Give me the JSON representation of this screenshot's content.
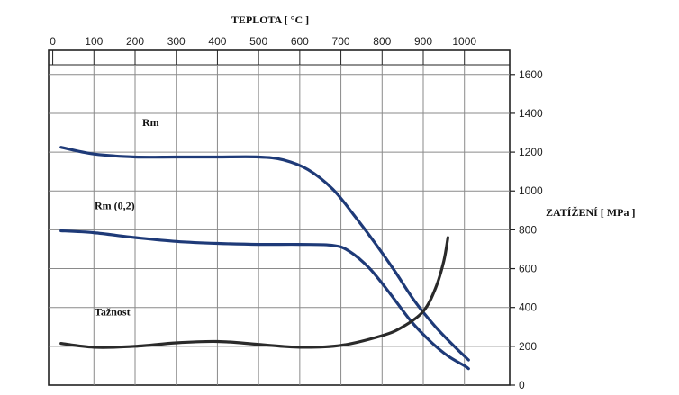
{
  "chart_data": {
    "type": "line",
    "x_axis": {
      "label": "TEPLOTA [ °C ]",
      "position": "top",
      "ticks": [
        0,
        100,
        200,
        300,
        400,
        500,
        600,
        700,
        800,
        900,
        1000
      ],
      "range": [
        -10,
        1110
      ]
    },
    "y_axis": {
      "label": "ZATÍŽENÍ  [ MPa ]",
      "position": "right",
      "ticks": [
        0,
        200,
        400,
        600,
        800,
        1000,
        1200,
        1400,
        1600
      ],
      "range": [
        0,
        1650
      ]
    },
    "grid": true,
    "series": [
      {
        "name": "Rm",
        "color": "#1e3a78",
        "points": [
          [
            20,
            1225
          ],
          [
            100,
            1190
          ],
          [
            200,
            1175
          ],
          [
            300,
            1175
          ],
          [
            400,
            1175
          ],
          [
            500,
            1175
          ],
          [
            560,
            1160
          ],
          [
            620,
            1110
          ],
          [
            680,
            1010
          ],
          [
            730,
            880
          ],
          [
            780,
            740
          ],
          [
            830,
            590
          ],
          [
            880,
            430
          ],
          [
            930,
            300
          ],
          [
            980,
            190
          ],
          [
            1010,
            130
          ]
        ]
      },
      {
        "name": "Rm (0,2)",
        "color": "#1e3a78",
        "points": [
          [
            20,
            795
          ],
          [
            100,
            785
          ],
          [
            200,
            760
          ],
          [
            300,
            740
          ],
          [
            400,
            730
          ],
          [
            500,
            725
          ],
          [
            600,
            725
          ],
          [
            680,
            720
          ],
          [
            720,
            690
          ],
          [
            770,
            600
          ],
          [
            820,
            470
          ],
          [
            870,
            330
          ],
          [
            920,
            220
          ],
          [
            960,
            150
          ],
          [
            1000,
            100
          ],
          [
            1010,
            85
          ]
        ]
      },
      {
        "name": "Tažnost",
        "color": "#2a2a2a",
        "points": [
          [
            20,
            215
          ],
          [
            100,
            195
          ],
          [
            200,
            200
          ],
          [
            300,
            218
          ],
          [
            400,
            225
          ],
          [
            500,
            210
          ],
          [
            600,
            195
          ],
          [
            700,
            205
          ],
          [
            800,
            255
          ],
          [
            850,
            300
          ],
          [
            900,
            380
          ],
          [
            930,
            500
          ],
          [
            950,
            640
          ],
          [
            960,
            760
          ]
        ]
      }
    ]
  }
}
